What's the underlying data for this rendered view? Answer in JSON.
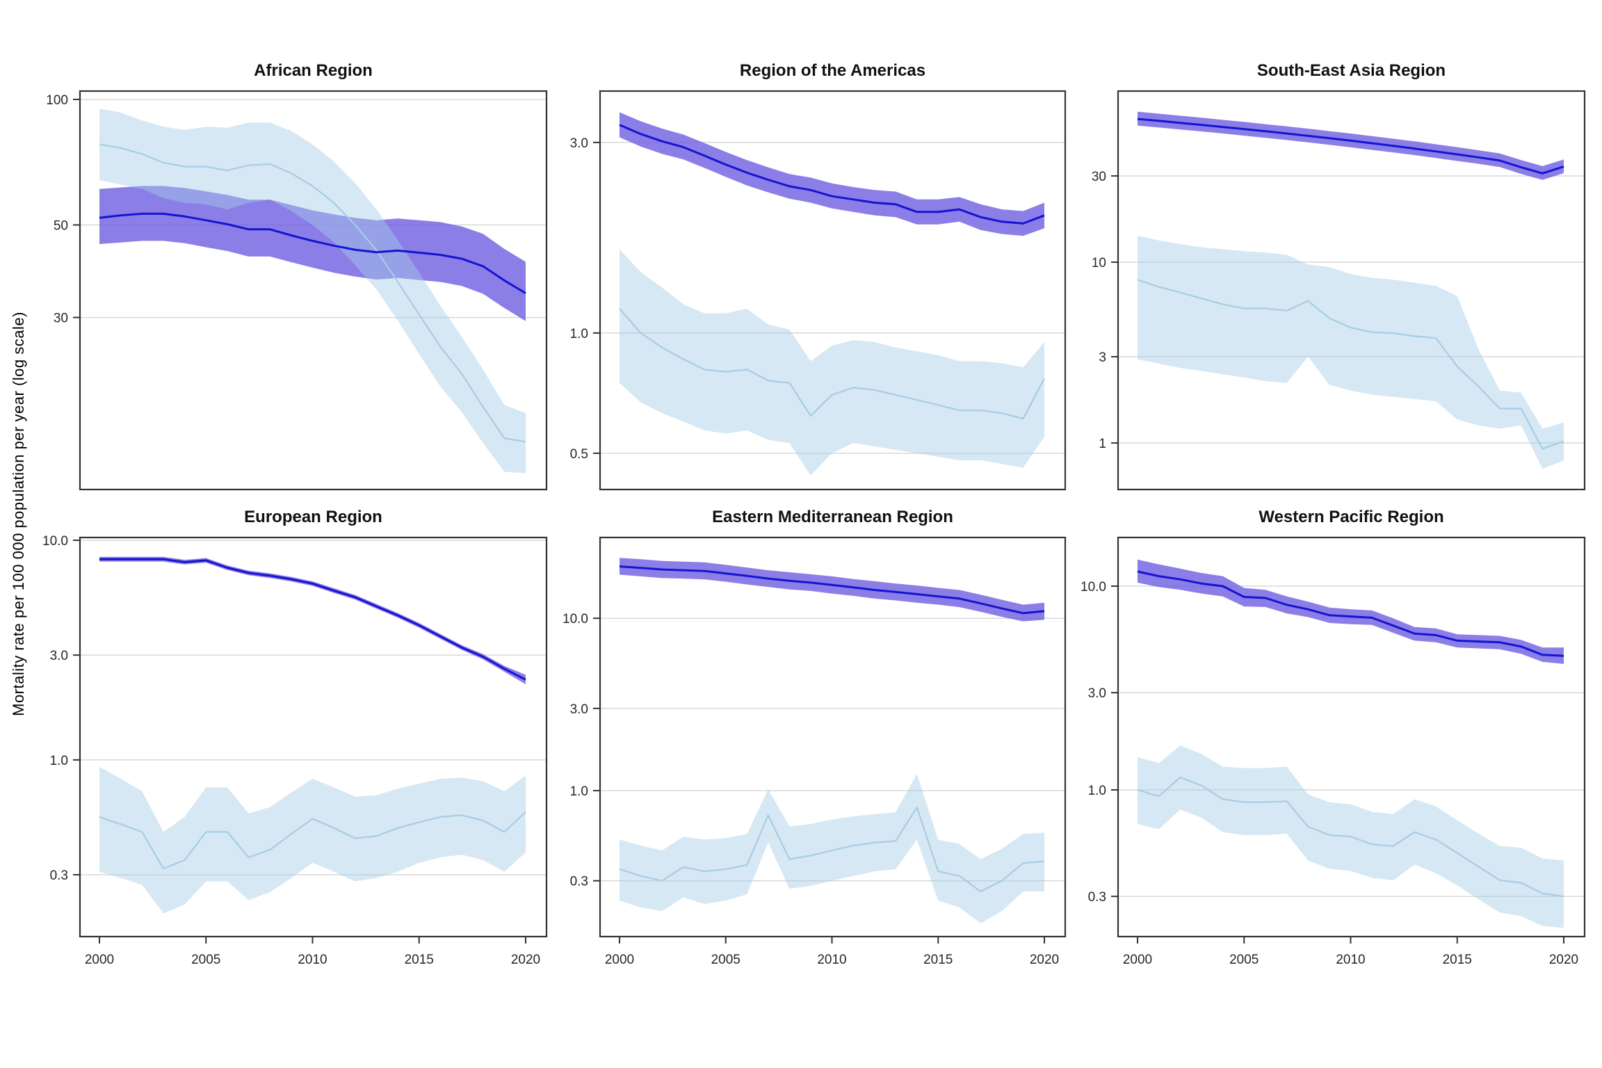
{
  "figure": {
    "y_axis_label": "Mortality rate per 100 000 population per year (log scale)"
  },
  "colors": {
    "dark_line": "#1414d2",
    "dark_ribbon": "rgba(106,90,224,0.78)",
    "light_line": "#a6cde3",
    "light_ribbon": "rgba(165,205,230,0.45)",
    "grid": "#d8d8d8",
    "border": "#333333",
    "tick_text": "#262626"
  },
  "xticks": [
    2000,
    2005,
    2010,
    2015,
    2020
  ],
  "years": [
    2000,
    2001,
    2002,
    2003,
    2004,
    2005,
    2006,
    2007,
    2008,
    2009,
    2010,
    2011,
    2012,
    2013,
    2014,
    2015,
    2016,
    2017,
    2018,
    2019,
    2020
  ],
  "chart_data": [
    {
      "type": "line",
      "title": "African Region",
      "xlabel": "",
      "ylabel": "Mortality rate per 100 000 population per year (log scale)",
      "log_scale": true,
      "ylim": [
        105.1,
        11.56
      ],
      "yticks": [
        {
          "label": "100",
          "value": 100
        },
        {
          "label": "50",
          "value": 50
        },
        {
          "label": "30",
          "value": 30
        }
      ],
      "series": [
        {
          "name": "dark-blue-estimate",
          "values": [
            52,
            52.7,
            53.2,
            53.2,
            52.4,
            51.3,
            50.2,
            48.8,
            48.8,
            47.2,
            45.8,
            44.6,
            43.6,
            43.0,
            43.4,
            42.9,
            42.4,
            41.5,
            39.8,
            36.8,
            34.3
          ],
          "hi": [
            61,
            61.5,
            62,
            62,
            61.3,
            60.2,
            59,
            57.5,
            57.5,
            55.8,
            54.2,
            53,
            52,
            51.3,
            51.8,
            51.3,
            50.8,
            49.6,
            47.6,
            43.8,
            40.8
          ],
          "lo": [
            45,
            45.4,
            45.8,
            45.8,
            45.2,
            44.2,
            43.3,
            42,
            42,
            40.7,
            39.5,
            38.4,
            37.6,
            37,
            37.3,
            36.9,
            36.5,
            35.7,
            34.2,
            31.6,
            29.4
          ]
        },
        {
          "name": "light-blue-estimate",
          "values": [
            78,
            76.5,
            74,
            70.5,
            69,
            69,
            67.5,
            69.5,
            70,
            66.5,
            62,
            56.5,
            50,
            43.5,
            36.5,
            30.5,
            25.5,
            22,
            18.3,
            15.4,
            15.1
          ],
          "hi": [
            95,
            93,
            89,
            86,
            84.5,
            86,
            85.5,
            88,
            88,
            84,
            78,
            71,
            63,
            54.5,
            46,
            38.5,
            32,
            27,
            22.5,
            18.5,
            17.7
          ],
          "lo": [
            64,
            62.5,
            61,
            58,
            56.5,
            56,
            54.5,
            56.5,
            57.5,
            54,
            50,
            45.5,
            40,
            35,
            29.5,
            24.5,
            20.5,
            17.8,
            15,
            12.8,
            12.7
          ]
        }
      ]
    },
    {
      "type": "line",
      "title": "Region of the Americas",
      "log_scale": true,
      "ylim": [
        4.05,
        0.404
      ],
      "yticks": [
        {
          "label": "3.0",
          "value": 3.0
        },
        {
          "label": "1.0",
          "value": 1.0
        },
        {
          "label": "0.5",
          "value": 0.5
        }
      ],
      "series": [
        {
          "name": "dark-blue-estimate",
          "values": [
            3.32,
            3.15,
            3.02,
            2.92,
            2.78,
            2.64,
            2.52,
            2.42,
            2.33,
            2.28,
            2.2,
            2.16,
            2.12,
            2.1,
            2.01,
            2.01,
            2.04,
            1.95,
            1.9,
            1.88,
            1.97
          ],
          "hi": [
            3.57,
            3.39,
            3.25,
            3.14,
            2.99,
            2.84,
            2.71,
            2.6,
            2.5,
            2.45,
            2.37,
            2.32,
            2.28,
            2.26,
            2.16,
            2.16,
            2.19,
            2.1,
            2.04,
            2.02,
            2.12
          ],
          "lo": [
            3.09,
            2.93,
            2.81,
            2.72,
            2.59,
            2.46,
            2.34,
            2.25,
            2.17,
            2.12,
            2.05,
            2.01,
            1.97,
            1.95,
            1.87,
            1.87,
            1.9,
            1.81,
            1.77,
            1.75,
            1.83
          ]
        },
        {
          "name": "light-blue-estimate",
          "values": [
            1.15,
            1.0,
            0.92,
            0.86,
            0.81,
            0.8,
            0.81,
            0.76,
            0.75,
            0.62,
            0.7,
            0.73,
            0.72,
            0.7,
            0.68,
            0.66,
            0.64,
            0.64,
            0.63,
            0.61,
            0.77
          ],
          "hi": [
            1.62,
            1.42,
            1.3,
            1.18,
            1.12,
            1.12,
            1.15,
            1.05,
            1.02,
            0.85,
            0.93,
            0.96,
            0.95,
            0.92,
            0.9,
            0.88,
            0.85,
            0.85,
            0.84,
            0.82,
            0.95
          ],
          "lo": [
            0.75,
            0.67,
            0.63,
            0.6,
            0.57,
            0.56,
            0.57,
            0.54,
            0.53,
            0.44,
            0.5,
            0.53,
            0.52,
            0.51,
            0.5,
            0.49,
            0.48,
            0.48,
            0.47,
            0.46,
            0.55
          ]
        }
      ]
    },
    {
      "type": "line",
      "title": "South-East Asia Region",
      "log_scale": true,
      "ylim": [
        89.2,
        0.548
      ],
      "yticks": [
        {
          "label": "30",
          "value": 30
        },
        {
          "label": "10",
          "value": 10
        },
        {
          "label": "3",
          "value": 3
        },
        {
          "label": "1",
          "value": 1
        }
      ],
      "series": [
        {
          "name": "dark-blue-estimate",
          "values": [
            62,
            60.5,
            59,
            57.5,
            56,
            54.5,
            53,
            51.5,
            50,
            48.5,
            47,
            45.5,
            44,
            42.5,
            41,
            39.5,
            38,
            36.5,
            33.5,
            31,
            33.8
          ],
          "hi": [
            68,
            66.3,
            64.6,
            63,
            61.3,
            59.7,
            58,
            56.4,
            54.8,
            53.1,
            51.5,
            49.8,
            48.2,
            46.6,
            44.9,
            43.3,
            41.6,
            40,
            36.7,
            34,
            37
          ],
          "lo": [
            57,
            55.6,
            54.2,
            52.9,
            51.5,
            50.1,
            48.7,
            47.4,
            46,
            44.6,
            43.2,
            41.8,
            40.5,
            39.1,
            37.7,
            36.3,
            35,
            33.6,
            30.8,
            28.5,
            31.1
          ]
        },
        {
          "name": "light-blue-estimate",
          "values": [
            8.0,
            7.3,
            6.8,
            6.3,
            5.85,
            5.55,
            5.55,
            5.4,
            6.1,
            4.9,
            4.35,
            4.1,
            4.05,
            3.9,
            3.8,
            2.65,
            2.05,
            1.55,
            1.55,
            0.93,
            1.02
          ],
          "hi": [
            14,
            13.2,
            12.6,
            12.1,
            11.8,
            11.5,
            11.3,
            11,
            9.7,
            9.4,
            8.6,
            8.2,
            8.0,
            7.7,
            7.4,
            6.5,
            3.3,
            1.95,
            1.9,
            1.2,
            1.3
          ],
          "lo": [
            2.9,
            2.75,
            2.6,
            2.5,
            2.4,
            2.3,
            2.2,
            2.15,
            3.0,
            2.1,
            1.95,
            1.85,
            1.8,
            1.75,
            1.7,
            1.35,
            1.25,
            1.2,
            1.25,
            0.72,
            0.8
          ]
        }
      ]
    },
    {
      "type": "line",
      "title": "European Region",
      "log_scale": true,
      "ylim": [
        10.37,
        0.1558
      ],
      "yticks": [
        {
          "label": "10.0",
          "value": 10.0
        },
        {
          "label": "3.0",
          "value": 3.0
        },
        {
          "label": "1.0",
          "value": 1.0
        },
        {
          "label": "0.3",
          "value": 0.3
        }
      ],
      "series": [
        {
          "name": "dark-blue-estimate",
          "values": [
            8.2,
            8.2,
            8.2,
            8.2,
            7.95,
            8.1,
            7.5,
            7.1,
            6.9,
            6.65,
            6.35,
            5.9,
            5.5,
            5.0,
            4.55,
            4.1,
            3.65,
            3.25,
            2.95,
            2.6,
            2.32
          ],
          "hi": [
            8.4,
            8.4,
            8.4,
            8.4,
            8.15,
            8.3,
            7.68,
            7.27,
            7.07,
            6.81,
            6.5,
            6.05,
            5.63,
            5.12,
            4.66,
            4.2,
            3.74,
            3.33,
            3.03,
            2.68,
            2.44
          ],
          "lo": [
            8.0,
            8.0,
            8.0,
            8.0,
            7.76,
            7.9,
            7.32,
            6.93,
            6.73,
            6.49,
            6.2,
            5.76,
            5.37,
            4.88,
            4.44,
            4.0,
            3.56,
            3.17,
            2.87,
            2.52,
            2.21
          ]
        },
        {
          "name": "light-blue-estimate",
          "values": [
            0.55,
            0.51,
            0.47,
            0.32,
            0.35,
            0.47,
            0.47,
            0.36,
            0.39,
            0.46,
            0.54,
            0.49,
            0.44,
            0.45,
            0.49,
            0.52,
            0.55,
            0.56,
            0.53,
            0.47,
            0.58
          ],
          "hi": [
            0.93,
            0.82,
            0.72,
            0.47,
            0.55,
            0.75,
            0.75,
            0.57,
            0.61,
            0.71,
            0.82,
            0.75,
            0.68,
            0.69,
            0.74,
            0.78,
            0.82,
            0.83,
            0.8,
            0.72,
            0.85
          ],
          "lo": [
            0.31,
            0.29,
            0.27,
            0.2,
            0.22,
            0.28,
            0.28,
            0.23,
            0.25,
            0.29,
            0.34,
            0.31,
            0.28,
            0.29,
            0.31,
            0.34,
            0.36,
            0.37,
            0.35,
            0.31,
            0.38
          ]
        }
      ]
    },
    {
      "type": "line",
      "title": "Eastern Mediterranean Region",
      "log_scale": true,
      "ylim": [
        29.7,
        0.141
      ],
      "yticks": [
        {
          "label": "10.0",
          "value": 10.0
        },
        {
          "label": "3.0",
          "value": 3.0
        },
        {
          "label": "1.0",
          "value": 1.0
        },
        {
          "label": "0.3",
          "value": 0.3
        }
      ],
      "series": [
        {
          "name": "dark-blue-estimate",
          "values": [
            20,
            19.6,
            19.2,
            19.0,
            18.8,
            18.2,
            17.6,
            17.0,
            16.5,
            16.1,
            15.6,
            15.1,
            14.6,
            14.2,
            13.8,
            13.4,
            13.0,
            12.2,
            11.4,
            10.7,
            11.0
          ],
          "hi": [
            22.4,
            22,
            21.5,
            21.3,
            21.1,
            20.4,
            19.7,
            19,
            18.5,
            18,
            17.5,
            16.9,
            16.4,
            15.9,
            15.5,
            15,
            14.6,
            13.7,
            12.8,
            12,
            12.3
          ],
          "lo": [
            17.9,
            17.5,
            17.1,
            17,
            16.8,
            16.3,
            15.7,
            15.2,
            14.7,
            14.4,
            13.9,
            13.5,
            13,
            12.7,
            12.3,
            12,
            11.6,
            10.9,
            10.2,
            9.6,
            9.8
          ]
        },
        {
          "name": "light-blue-estimate",
          "values": [
            0.35,
            0.32,
            0.3,
            0.36,
            0.34,
            0.35,
            0.37,
            0.72,
            0.4,
            0.42,
            0.45,
            0.48,
            0.5,
            0.51,
            0.8,
            0.34,
            0.32,
            0.26,
            0.3,
            0.38,
            0.39
          ],
          "hi": [
            0.52,
            0.48,
            0.45,
            0.54,
            0.52,
            0.53,
            0.56,
            1.02,
            0.62,
            0.64,
            0.68,
            0.71,
            0.73,
            0.75,
            1.25,
            0.52,
            0.49,
            0.4,
            0.46,
            0.56,
            0.57
          ],
          "lo": [
            0.23,
            0.21,
            0.2,
            0.24,
            0.22,
            0.23,
            0.25,
            0.5,
            0.27,
            0.28,
            0.3,
            0.32,
            0.34,
            0.35,
            0.52,
            0.23,
            0.21,
            0.17,
            0.2,
            0.26,
            0.26
          ]
        }
      ]
    },
    {
      "type": "line",
      "title": "Western Pacific Region",
      "log_scale": true,
      "ylim": [
        17.47,
        0.189
      ],
      "yticks": [
        {
          "label": "10.0",
          "value": 10.0
        },
        {
          "label": "3.0",
          "value": 3.0
        },
        {
          "label": "1.0",
          "value": 1.0
        },
        {
          "label": "0.3",
          "value": 0.3
        }
      ],
      "series": [
        {
          "name": "dark-blue-estimate",
          "values": [
            11.8,
            11.2,
            10.8,
            10.3,
            10.0,
            8.85,
            8.75,
            8.1,
            7.7,
            7.2,
            7.1,
            7.0,
            6.4,
            5.85,
            5.75,
            5.4,
            5.35,
            5.3,
            5.05,
            4.6,
            4.55
          ],
          "hi": [
            13.5,
            12.8,
            12.2,
            11.6,
            11.2,
            9.8,
            9.6,
            8.9,
            8.4,
            7.85,
            7.7,
            7.6,
            6.95,
            6.3,
            6.2,
            5.8,
            5.75,
            5.7,
            5.45,
            5.0,
            5.0
          ],
          "lo": [
            10.4,
            9.9,
            9.6,
            9.2,
            8.9,
            7.95,
            7.9,
            7.35,
            7.05,
            6.6,
            6.5,
            6.45,
            5.9,
            5.4,
            5.3,
            5.0,
            4.95,
            4.9,
            4.65,
            4.25,
            4.15
          ]
        },
        {
          "name": "light-blue-estimate",
          "values": [
            1.0,
            0.93,
            1.15,
            1.05,
            0.9,
            0.87,
            0.87,
            0.88,
            0.66,
            0.6,
            0.59,
            0.54,
            0.53,
            0.62,
            0.57,
            0.49,
            0.42,
            0.36,
            0.35,
            0.31,
            0.3
          ],
          "hi": [
            1.45,
            1.35,
            1.65,
            1.5,
            1.3,
            1.28,
            1.28,
            1.3,
            0.95,
            0.87,
            0.85,
            0.78,
            0.76,
            0.9,
            0.83,
            0.71,
            0.61,
            0.53,
            0.52,
            0.46,
            0.45
          ],
          "lo": [
            0.68,
            0.64,
            0.8,
            0.73,
            0.62,
            0.6,
            0.6,
            0.61,
            0.45,
            0.41,
            0.4,
            0.37,
            0.36,
            0.43,
            0.39,
            0.34,
            0.29,
            0.25,
            0.24,
            0.215,
            0.21
          ]
        }
      ]
    }
  ]
}
